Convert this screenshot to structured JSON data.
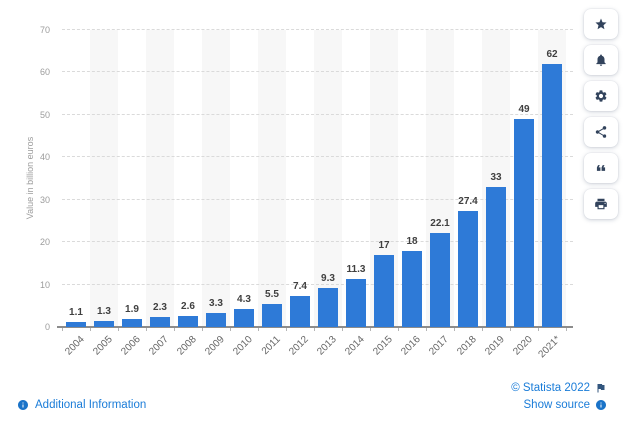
{
  "page": {
    "background_color": "#ffffff"
  },
  "chart_data": {
    "type": "bar",
    "title": "",
    "xlabel": "",
    "ylabel": "Value in billion euros",
    "categories": [
      "2004",
      "2005",
      "2006",
      "2007",
      "2008",
      "2009",
      "2010",
      "2011",
      "2012",
      "2013",
      "2014",
      "2015",
      "2016",
      "2017",
      "2018",
      "2019",
      "2020",
      "2021*"
    ],
    "values": [
      1.1,
      1.3,
      1.9,
      2.3,
      2.6,
      3.3,
      4.3,
      5.5,
      7.4,
      9.3,
      11.3,
      17,
      18,
      22.1,
      27.4,
      33,
      49,
      62
    ],
    "value_labels": [
      "1.1",
      "1.3",
      "1.9",
      "2.3",
      "2.6",
      "3.3",
      "4.3",
      "5.5",
      "7.4",
      "9.3",
      "11.3",
      "17",
      "18",
      "22.1",
      "27.4",
      "33",
      "49",
      "62"
    ],
    "ylim": [
      0,
      70
    ],
    "yticks": [
      0,
      10,
      20,
      30,
      40,
      50,
      60,
      70
    ],
    "grid": "horizontal-dashed",
    "legend": "none",
    "plot_bands": "alternating-light-columns",
    "bar_color": "#2e7ad7",
    "band_color": "#f7f7f7",
    "gridline_color": "#dadada",
    "axis_color": "#8c8c8c",
    "ytick_label_color": "#9c9c9c",
    "xtick_label_color": "#666666",
    "value_label_color": "#404040"
  },
  "toolbar": {
    "icon_color": "#32435c",
    "items": [
      {
        "id": "favorite",
        "icon": "star-icon"
      },
      {
        "id": "alerts",
        "icon": "bell-icon"
      },
      {
        "id": "settings",
        "icon": "gear-icon"
      },
      {
        "id": "share",
        "icon": "share-icon"
      },
      {
        "id": "citation",
        "icon": "quote-icon"
      },
      {
        "id": "print",
        "icon": "printer-icon"
      }
    ]
  },
  "footer": {
    "additional_information_label": "Additional Information",
    "copyright_label": "© Statista 2022",
    "show_source_label": "Show source",
    "link_color": "#1a7cd8",
    "info_icon_color": "#1a73c8",
    "flag_icon_color": "#33567e"
  }
}
